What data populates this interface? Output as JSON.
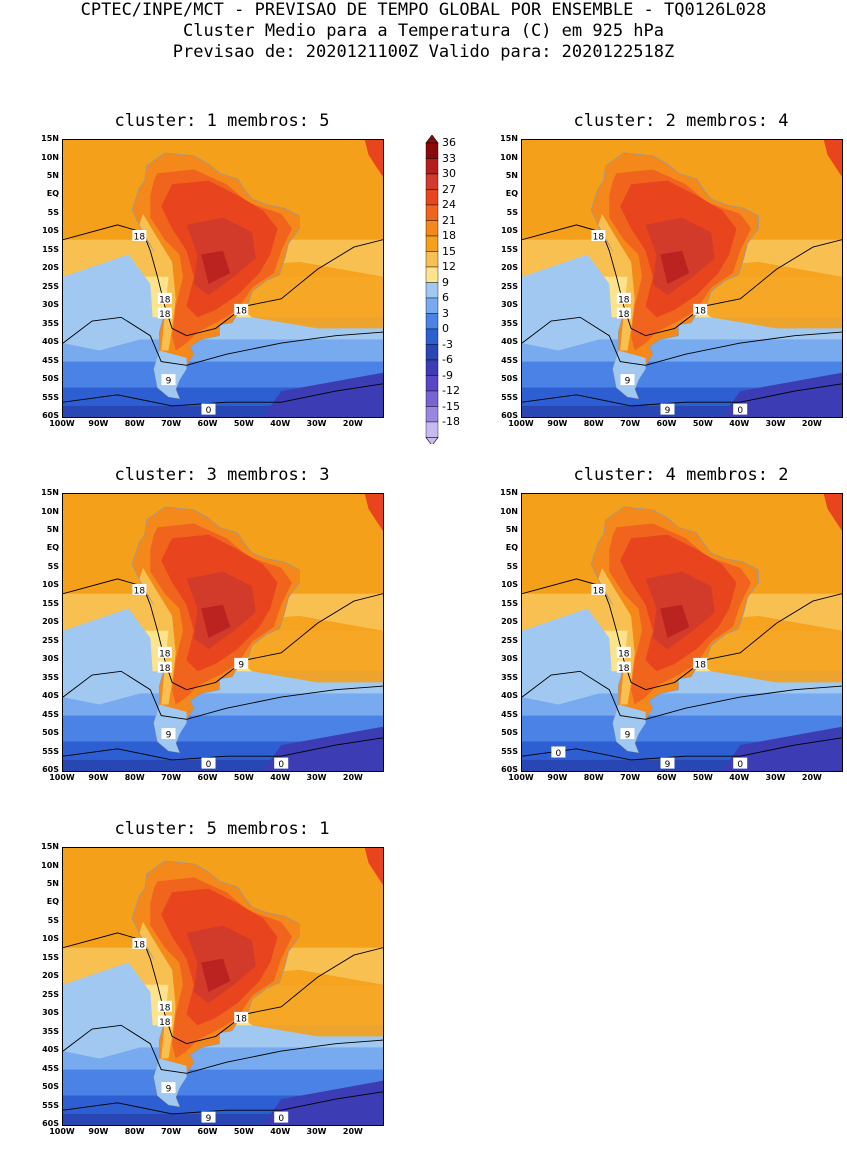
{
  "header": {
    "line1": "CPTEC/INPE/MCT - PREVISAO DE TEMPO GLOBAL POR ENSEMBLE - TQ0126L028",
    "line2": "Cluster Medio para a Temperatura (C) em 925 hPa",
    "line3": "Previsao de: 2020121100Z   Valido para: 2020122518Z"
  },
  "chart_data": {
    "type": "heatmap",
    "variable": "Temperature (C) at 925 hPa",
    "lat_ticks": [
      "15N",
      "10N",
      "5N",
      "EQ",
      "5S",
      "10S",
      "15S",
      "20S",
      "25S",
      "30S",
      "35S",
      "40S",
      "45S",
      "50S",
      "55S",
      "60S"
    ],
    "lon_ticks": [
      "100W",
      "90W",
      "80W",
      "70W",
      "60W",
      "50W",
      "40W",
      "30W",
      "20W"
    ],
    "lat_range": [
      -60,
      15
    ],
    "lon_range": [
      -100,
      -12
    ],
    "colorbar": {
      "levels": [
        "36",
        "33",
        "30",
        "27",
        "24",
        "21",
        "18",
        "15",
        "12",
        "9",
        "6",
        "3",
        "0",
        "-3",
        "-6",
        "-9",
        "-12",
        "-15",
        "-18"
      ],
      "colors": [
        "#8c0a0a",
        "#b41e1e",
        "#d23a2a",
        "#e8441e",
        "#f0641e",
        "#f5881a",
        "#f5a01a",
        "#f8c050",
        "#fde38c",
        "#a0c8f0",
        "#78aaf0",
        "#4b82e6",
        "#2d5fd2",
        "#2846b4",
        "#3c3cb4",
        "#5a46c8",
        "#7864d2",
        "#9a88e0",
        "#c8baf0"
      ]
    },
    "panels": [
      {
        "title": "cluster: 1   membros: 5",
        "cluster": 1,
        "members": 5,
        "contour_labels": [
          "18",
          "18",
          "18",
          "18",
          "9",
          "0"
        ]
      },
      {
        "title": "cluster: 2   membros: 4",
        "cluster": 2,
        "members": 4,
        "contour_labels": [
          "18",
          "18",
          "18",
          "18",
          "9",
          "9",
          "0"
        ]
      },
      {
        "title": "cluster: 3   membros: 3",
        "cluster": 3,
        "members": 3,
        "contour_labels": [
          "18",
          "18",
          "18",
          "9",
          "9",
          "0",
          "0"
        ]
      },
      {
        "title": "cluster: 4   membros: 2",
        "cluster": 4,
        "members": 2,
        "contour_labels": [
          "18",
          "18",
          "18",
          "18",
          "9",
          "9",
          "0",
          "0"
        ]
      },
      {
        "title": "cluster: 5   membros: 1",
        "cluster": 5,
        "members": 1,
        "contour_labels": [
          "18",
          "18",
          "18",
          "18",
          "9",
          "9",
          "0"
        ]
      }
    ]
  }
}
